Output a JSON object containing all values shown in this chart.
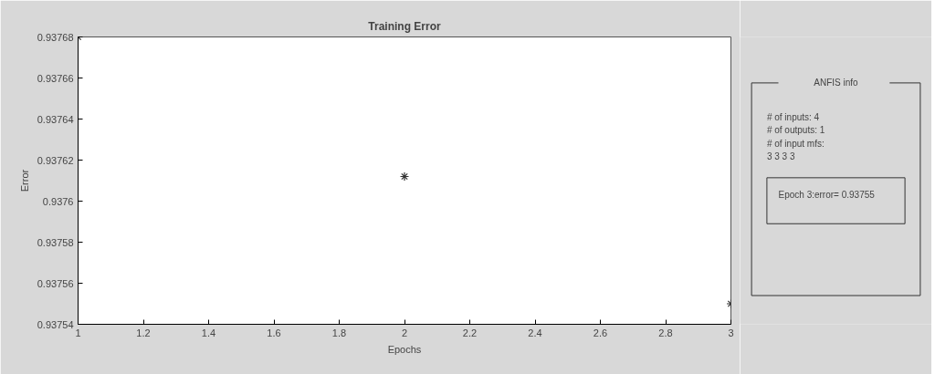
{
  "chart_data": {
    "type": "scatter",
    "title": "Training Error",
    "xlabel": "Epochs",
    "ylabel": "Error",
    "x": [
      1,
      2,
      3
    ],
    "series": [
      {
        "color": "#333333",
        "values": [
          0.93768,
          0.937612,
          0.93755
        ]
      }
    ],
    "marker": "cross",
    "grid": false,
    "xlim": [
      1,
      3
    ],
    "xticks": [
      1,
      1.2,
      1.4,
      1.6,
      1.8,
      2,
      2.2,
      2.4,
      2.6,
      2.8,
      3
    ],
    "ylim": [
      0.93754,
      0.93768
    ],
    "yticks": [
      0.93754,
      0.93756,
      0.93758,
      0.9376,
      0.93762,
      0.93764,
      0.93766,
      0.93768
    ],
    "annotations": [
      "ANFIS info",
      "# of inputs: 4",
      "# of outputs: 1",
      "# of input mfs:",
      "3 3 3 3",
      "Epoch 3:error= 0.93755"
    ]
  }
}
